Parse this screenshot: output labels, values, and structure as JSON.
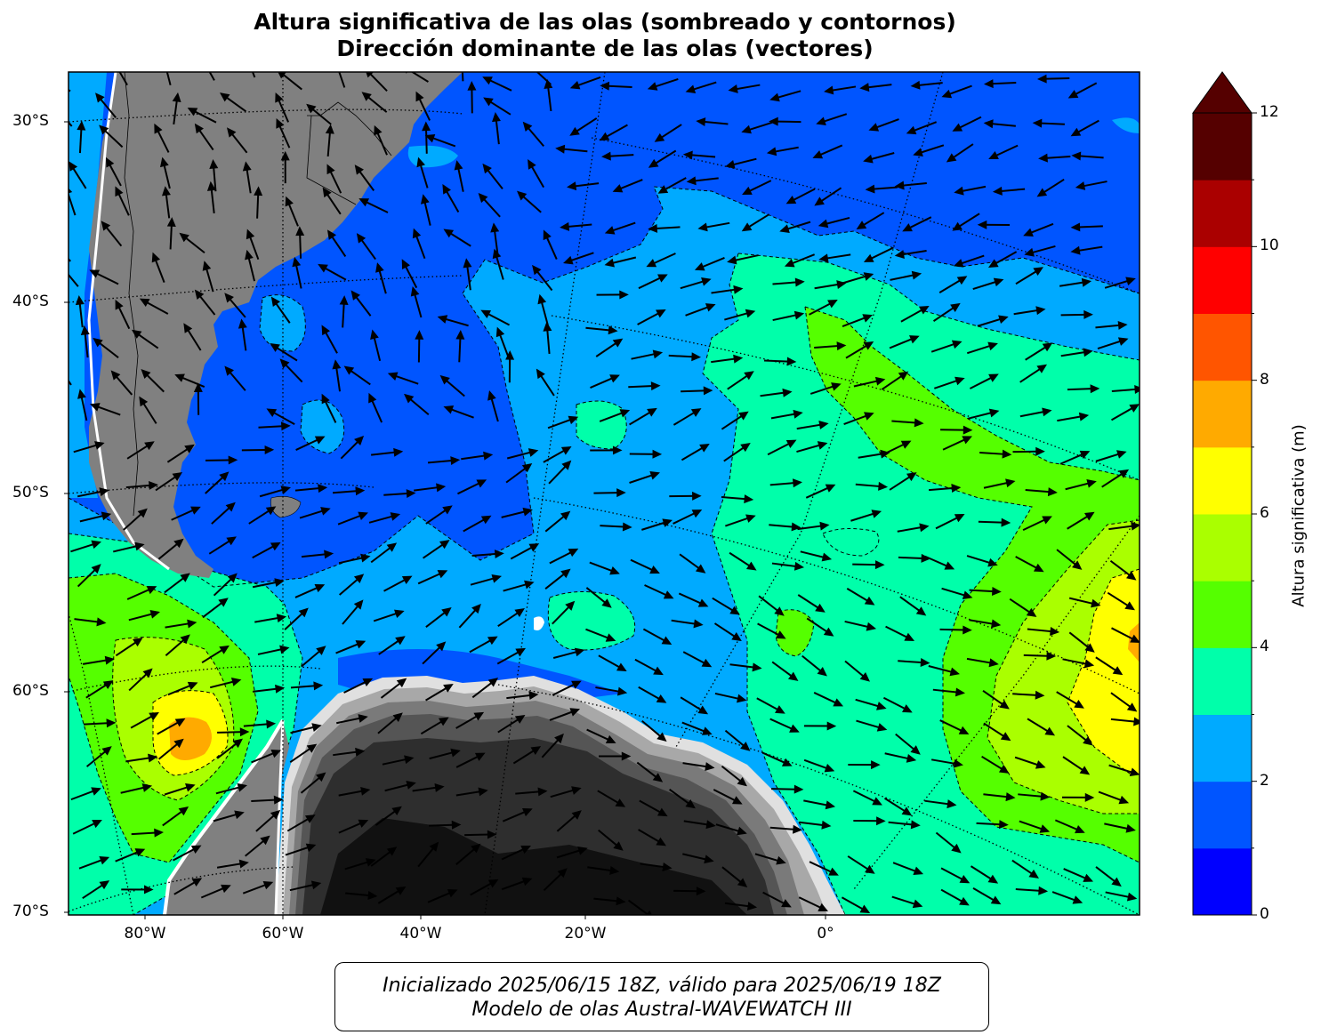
{
  "title": {
    "line1": "Altura significativa de las olas (sombreado y contornos)",
    "line2": "Dirección dominante de las olas (vectores)"
  },
  "map": {
    "lat_ticks": [
      "30°S",
      "40°S",
      "50°S",
      "60°S",
      "70°S"
    ],
    "lon_ticks": [
      "80°W",
      "60°W",
      "40°W",
      "20°W",
      "0°"
    ],
    "land_color": "#808080",
    "ice_colors": [
      "#111111",
      "#2e2e2e",
      "#555555",
      "#7a7a7a",
      "#a8a8a8",
      "#d8d8d8"
    ]
  },
  "colorbar": {
    "label": "Altura significativa (m)",
    "ticks": [
      "0",
      "2",
      "4",
      "6",
      "8",
      "10",
      "12"
    ],
    "extend": "max",
    "levels": [
      0,
      1,
      2,
      3,
      4,
      5,
      6,
      7,
      8,
      9,
      10,
      11,
      12
    ],
    "colors": [
      "#0000ff",
      "#0055ff",
      "#00aaff",
      "#00ffaa",
      "#55ff00",
      "#aaff00",
      "#ffff00",
      "#ffaa00",
      "#ff5500",
      "#ff0000",
      "#aa0000",
      "#550000"
    ],
    "extend_color": "#550000"
  },
  "footer": {
    "line1": "Inicializado 2025/06/15 18Z, válido para 2025/06/19 18Z",
    "line2": "Modelo de olas Austral-WAVEWATCH III"
  }
}
